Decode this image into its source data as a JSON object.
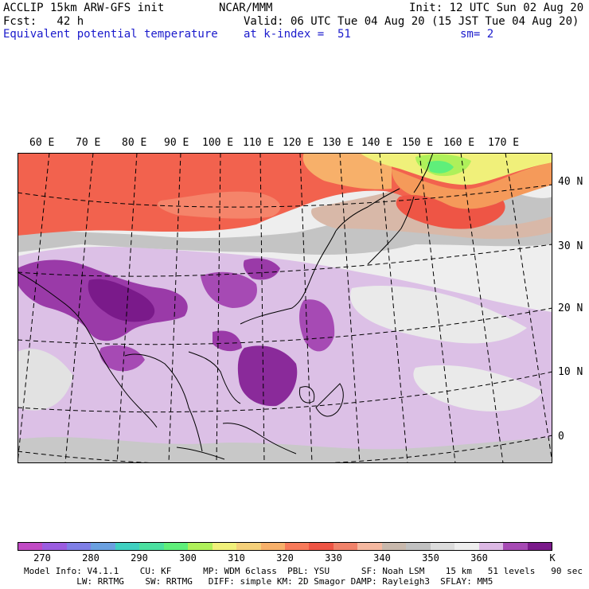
{
  "header": {
    "line1_left": "ACCLIP 15km ARW-GFS init",
    "line1_center": "NCAR/MMM",
    "line1_right": "Init: 12 UTC Sun 02 Aug 20",
    "line2_left": "Fcst:   42 h",
    "line2_right": "Valid: 06 UTC Tue 04 Aug 20 (15 JST Tue 04 Aug 20)",
    "line3_left": "Equivalent potential temperature",
    "line3_center": "at k-index =  51",
    "line3_right": "sm= 2"
  },
  "map": {
    "longitude_labels": [
      "60 E",
      "70 E",
      "80 E",
      "90 E",
      "100 E",
      "110 E",
      "120 E",
      "130 E",
      "140 E",
      "150 E",
      "160 E",
      "170 E"
    ],
    "latitude_labels": [
      "40 N",
      "30 N",
      "20 N",
      "10 N",
      "0"
    ]
  },
  "colorbar": {
    "colors": [
      "#c04ac4",
      "#9b5de0",
      "#7f7fe6",
      "#6aa0e0",
      "#3fd0c0",
      "#4be0a0",
      "#5fef7a",
      "#aef05a",
      "#f0f07a",
      "#f5d07a",
      "#f7b06a",
      "#f77a5a",
      "#ee5545",
      "#f0826a",
      "#f5b8a0",
      "#c8b8ac",
      "#c0c0c0",
      "#dcdcdc",
      "#eeeeee",
      "#dcb8e4",
      "#a64ab4",
      "#7a1a8a"
    ],
    "ticks": [
      "270",
      "280",
      "290",
      "300",
      "310",
      "320",
      "330",
      "340",
      "350",
      "360"
    ],
    "unit": "K"
  },
  "footer": {
    "line1": "Model Info: V4.1.1    CU: KF      MP: WDM 6class  PBL: YSU      SF: Noah LSM    15 km   51 levels   90 sec",
    "line2": "          LW: RRTMG    SW: RRTMG   DIFF: simple KM: 2D Smagor DAMP: Rayleigh3  SFLAY: MM5"
  }
}
